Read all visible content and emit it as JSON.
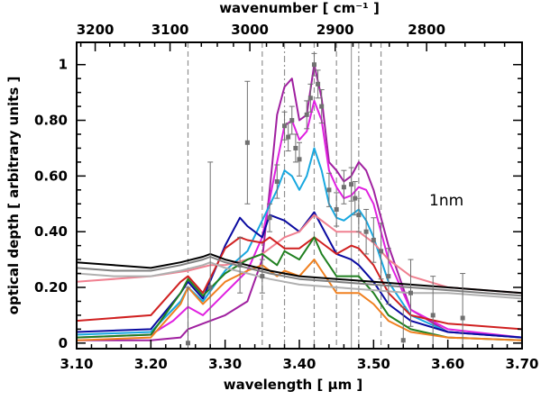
{
  "chart_data": {
    "type": "line",
    "xlabel": "wavelength [ μm ]",
    "x2label": "wavenumber [ cm⁻¹ ]",
    "ylabel": "optical depth [ arbitrary units ]",
    "annotation": "1nm",
    "xlim": [
      3.1,
      3.7
    ],
    "ylim": [
      -0.02,
      1.08
    ],
    "x_ticks": [
      "3.10",
      "3.20",
      "3.30",
      "3.40",
      "3.50",
      "3.60",
      "3.70"
    ],
    "y_ticks": [
      "0",
      "0.20",
      "0.40",
      "0.60",
      "0.80",
      "1"
    ],
    "x2_ticks": [
      "3200",
      "3100",
      "3000",
      "2900",
      "2800"
    ],
    "vlines_dashed": [
      3.25,
      3.35,
      3.42,
      3.45,
      3.51
    ],
    "vlines_dashdot": [
      3.38,
      3.48
    ],
    "vlines_solid": [
      3.47
    ],
    "series": [
      {
        "name": "magenta-dark",
        "color": "#a020a0",
        "x": [
          3.1,
          3.2,
          3.24,
          3.25,
          3.27,
          3.3,
          3.33,
          3.35,
          3.36,
          3.37,
          3.38,
          3.39,
          3.4,
          3.41,
          3.42,
          3.43,
          3.44,
          3.45,
          3.46,
          3.47,
          3.48,
          3.49,
          3.5,
          3.52,
          3.55,
          3.6,
          3.7
        ],
        "y": [
          0.01,
          0.01,
          0.02,
          0.05,
          0.07,
          0.1,
          0.15,
          0.3,
          0.55,
          0.82,
          0.92,
          0.95,
          0.8,
          0.82,
          1.0,
          0.88,
          0.65,
          0.62,
          0.58,
          0.6,
          0.65,
          0.62,
          0.55,
          0.35,
          0.12,
          0.04,
          0.02
        ]
      },
      {
        "name": "magenta",
        "color": "#e020e0",
        "x": [
          3.1,
          3.2,
          3.23,
          3.25,
          3.27,
          3.3,
          3.33,
          3.35,
          3.37,
          3.38,
          3.39,
          3.4,
          3.41,
          3.42,
          3.43,
          3.44,
          3.45,
          3.46,
          3.47,
          3.48,
          3.49,
          3.5,
          3.52,
          3.55,
          3.6,
          3.7
        ],
        "y": [
          0.02,
          0.03,
          0.08,
          0.13,
          0.1,
          0.18,
          0.26,
          0.38,
          0.65,
          0.78,
          0.8,
          0.73,
          0.76,
          0.87,
          0.8,
          0.62,
          0.56,
          0.52,
          0.53,
          0.56,
          0.55,
          0.5,
          0.3,
          0.12,
          0.05,
          0.02
        ]
      },
      {
        "name": "cyan",
        "color": "#18a8e0",
        "x": [
          3.1,
          3.2,
          3.24,
          3.25,
          3.27,
          3.3,
          3.33,
          3.35,
          3.37,
          3.38,
          3.39,
          3.4,
          3.41,
          3.42,
          3.43,
          3.44,
          3.45,
          3.46,
          3.47,
          3.48,
          3.49,
          3.5,
          3.52,
          3.55,
          3.6,
          3.7
        ],
        "y": [
          0.03,
          0.04,
          0.15,
          0.2,
          0.15,
          0.26,
          0.33,
          0.44,
          0.55,
          0.62,
          0.6,
          0.55,
          0.6,
          0.7,
          0.62,
          0.5,
          0.45,
          0.44,
          0.46,
          0.48,
          0.44,
          0.38,
          0.22,
          0.1,
          0.04,
          0.02
        ]
      },
      {
        "name": "navy",
        "color": "#0a0aa0",
        "x": [
          3.1,
          3.2,
          3.24,
          3.25,
          3.27,
          3.3,
          3.32,
          3.33,
          3.35,
          3.36,
          3.38,
          3.4,
          3.42,
          3.43,
          3.45,
          3.47,
          3.48,
          3.5,
          3.52,
          3.55,
          3.6,
          3.7
        ],
        "y": [
          0.04,
          0.05,
          0.18,
          0.22,
          0.16,
          0.35,
          0.45,
          0.42,
          0.38,
          0.46,
          0.44,
          0.4,
          0.47,
          0.42,
          0.32,
          0.3,
          0.28,
          0.22,
          0.14,
          0.08,
          0.04,
          0.02
        ]
      },
      {
        "name": "pink",
        "color": "#f08090",
        "x": [
          3.1,
          3.2,
          3.25,
          3.28,
          3.3,
          3.33,
          3.35,
          3.38,
          3.4,
          3.42,
          3.45,
          3.48,
          3.5,
          3.52,
          3.55,
          3.6,
          3.7
        ],
        "y": [
          0.22,
          0.24,
          0.26,
          0.28,
          0.28,
          0.3,
          0.32,
          0.38,
          0.4,
          0.46,
          0.4,
          0.4,
          0.36,
          0.3,
          0.24,
          0.2,
          0.18
        ]
      },
      {
        "name": "red",
        "color": "#d02020",
        "x": [
          3.1,
          3.2,
          3.24,
          3.25,
          3.27,
          3.3,
          3.32,
          3.33,
          3.35,
          3.36,
          3.38,
          3.4,
          3.42,
          3.43,
          3.45,
          3.47,
          3.48,
          3.5,
          3.52,
          3.55,
          3.6,
          3.7
        ],
        "y": [
          0.08,
          0.1,
          0.22,
          0.24,
          0.18,
          0.34,
          0.38,
          0.37,
          0.36,
          0.38,
          0.34,
          0.34,
          0.38,
          0.36,
          0.32,
          0.35,
          0.34,
          0.28,
          0.18,
          0.1,
          0.07,
          0.05
        ]
      },
      {
        "name": "green",
        "color": "#208020",
        "x": [
          3.1,
          3.2,
          3.24,
          3.25,
          3.27,
          3.3,
          3.33,
          3.35,
          3.37,
          3.38,
          3.4,
          3.42,
          3.43,
          3.45,
          3.48,
          3.5,
          3.52,
          3.55,
          3.6,
          3.7
        ],
        "y": [
          0.02,
          0.03,
          0.18,
          0.23,
          0.17,
          0.25,
          0.3,
          0.32,
          0.28,
          0.33,
          0.3,
          0.38,
          0.32,
          0.24,
          0.24,
          0.18,
          0.1,
          0.05,
          0.02,
          0.01
        ]
      },
      {
        "name": "orange",
        "color": "#f08020",
        "x": [
          3.1,
          3.2,
          3.24,
          3.25,
          3.27,
          3.3,
          3.33,
          3.35,
          3.37,
          3.38,
          3.4,
          3.42,
          3.43,
          3.45,
          3.48,
          3.5,
          3.52,
          3.55,
          3.6,
          3.7
        ],
        "y": [
          0.01,
          0.02,
          0.14,
          0.2,
          0.14,
          0.22,
          0.26,
          0.28,
          0.24,
          0.26,
          0.24,
          0.3,
          0.26,
          0.18,
          0.18,
          0.14,
          0.08,
          0.04,
          0.02,
          0.01
        ]
      },
      {
        "name": "black",
        "color": "#000000",
        "x": [
          3.1,
          3.15,
          3.2,
          3.24,
          3.27,
          3.28,
          3.3,
          3.33,
          3.36,
          3.4,
          3.45,
          3.5,
          3.55,
          3.6,
          3.65,
          3.7
        ],
        "y": [
          0.29,
          0.28,
          0.27,
          0.29,
          0.31,
          0.32,
          0.3,
          0.28,
          0.26,
          0.24,
          0.23,
          0.22,
          0.21,
          0.2,
          0.19,
          0.18
        ]
      },
      {
        "name": "gray",
        "color": "#808080",
        "x": [
          3.1,
          3.15,
          3.2,
          3.24,
          3.27,
          3.28,
          3.3,
          3.33,
          3.36,
          3.4,
          3.45,
          3.5,
          3.55,
          3.6,
          3.65,
          3.7
        ],
        "y": [
          0.27,
          0.26,
          0.26,
          0.28,
          0.3,
          0.31,
          0.29,
          0.27,
          0.25,
          0.23,
          0.22,
          0.21,
          0.2,
          0.19,
          0.18,
          0.17
        ]
      },
      {
        "name": "silver",
        "color": "#b0b0b0",
        "x": [
          3.1,
          3.15,
          3.2,
          3.24,
          3.27,
          3.28,
          3.3,
          3.33,
          3.36,
          3.4,
          3.45,
          3.5,
          3.55,
          3.6,
          3.65,
          3.7
        ],
        "y": [
          0.25,
          0.24,
          0.24,
          0.26,
          0.28,
          0.29,
          0.27,
          0.25,
          0.23,
          0.21,
          0.2,
          0.19,
          0.18,
          0.18,
          0.17,
          0.16
        ]
      }
    ],
    "scatter": {
      "name": "observation",
      "color": "#707070",
      "points": [
        {
          "x": 3.25,
          "y": 0.0,
          "err": 0.2
        },
        {
          "x": 3.28,
          "y": 0.2,
          "err": 0.45
        },
        {
          "x": 3.32,
          "y": 0.28,
          "err": 0.1
        },
        {
          "x": 3.33,
          "y": 0.72,
          "err": 0.22
        },
        {
          "x": 3.35,
          "y": 0.24,
          "err": 0.06
        },
        {
          "x": 3.36,
          "y": 0.45,
          "err": 0.05
        },
        {
          "x": 3.37,
          "y": 0.58,
          "err": 0.06
        },
        {
          "x": 3.38,
          "y": 0.78,
          "err": 0.05
        },
        {
          "x": 3.385,
          "y": 0.74,
          "err": 0.05
        },
        {
          "x": 3.39,
          "y": 0.8,
          "err": 0.05
        },
        {
          "x": 3.395,
          "y": 0.7,
          "err": 0.05
        },
        {
          "x": 3.4,
          "y": 0.66,
          "err": 0.06
        },
        {
          "x": 3.41,
          "y": 0.82,
          "err": 0.05
        },
        {
          "x": 3.415,
          "y": 0.88,
          "err": 0.05
        },
        {
          "x": 3.42,
          "y": 1.0,
          "err": 0.04
        },
        {
          "x": 3.425,
          "y": 0.93,
          "err": 0.05
        },
        {
          "x": 3.43,
          "y": 0.85,
          "err": 0.06
        },
        {
          "x": 3.44,
          "y": 0.55,
          "err": 0.06
        },
        {
          "x": 3.45,
          "y": 0.48,
          "err": 0.06
        },
        {
          "x": 3.46,
          "y": 0.56,
          "err": 0.06
        },
        {
          "x": 3.47,
          "y": 0.57,
          "err": 0.06
        },
        {
          "x": 3.475,
          "y": 0.52,
          "err": 0.06
        },
        {
          "x": 3.48,
          "y": 0.46,
          "err": 0.06
        },
        {
          "x": 3.49,
          "y": 0.4,
          "err": 0.08
        },
        {
          "x": 3.5,
          "y": 0.37,
          "err": 0.08
        },
        {
          "x": 3.51,
          "y": 0.33,
          "err": 0.1
        },
        {
          "x": 3.52,
          "y": 0.24,
          "err": 0.1
        },
        {
          "x": 3.54,
          "y": 0.01,
          "err": 0.12
        },
        {
          "x": 3.55,
          "y": 0.18,
          "err": 0.12
        },
        {
          "x": 3.58,
          "y": 0.1,
          "err": 0.14
        },
        {
          "x": 3.62,
          "y": 0.09,
          "err": 0.16
        }
      ]
    }
  }
}
